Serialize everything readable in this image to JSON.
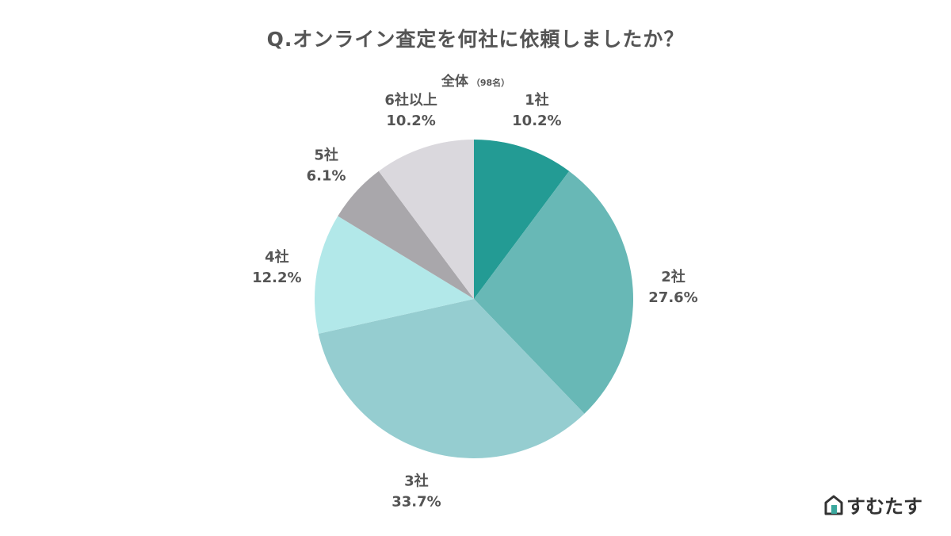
{
  "header": {
    "title": "Q.オンライン査定を何社に依頼しましたか？",
    "subtitle": "全体",
    "subtitle_note": "（98名）"
  },
  "brand": {
    "name": "すむたす",
    "icon": "house-logo-icon",
    "color": "#3aa79d"
  },
  "chart_data": {
    "type": "pie",
    "title": "Q.オンライン査定を何社に依頼しましたか？",
    "subtitle": "全体（98名）",
    "start": "top",
    "direction": "clockwise",
    "categories": [
      "1社",
      "2社",
      "3社",
      "4社",
      "5社",
      "6社以上"
    ],
    "values": [
      10.2,
      27.6,
      33.7,
      12.2,
      6.1,
      10.2
    ],
    "value_labels": [
      "10.2%",
      "27.6%",
      "33.7%",
      "12.2%",
      "6.1%",
      "10.2%"
    ],
    "unit": "%",
    "colors": [
      "#239b94",
      "#68b8b6",
      "#95cdd0",
      "#b2e8e9",
      "#a9a7ab",
      "#dad8dd"
    ],
    "legend": "none"
  }
}
